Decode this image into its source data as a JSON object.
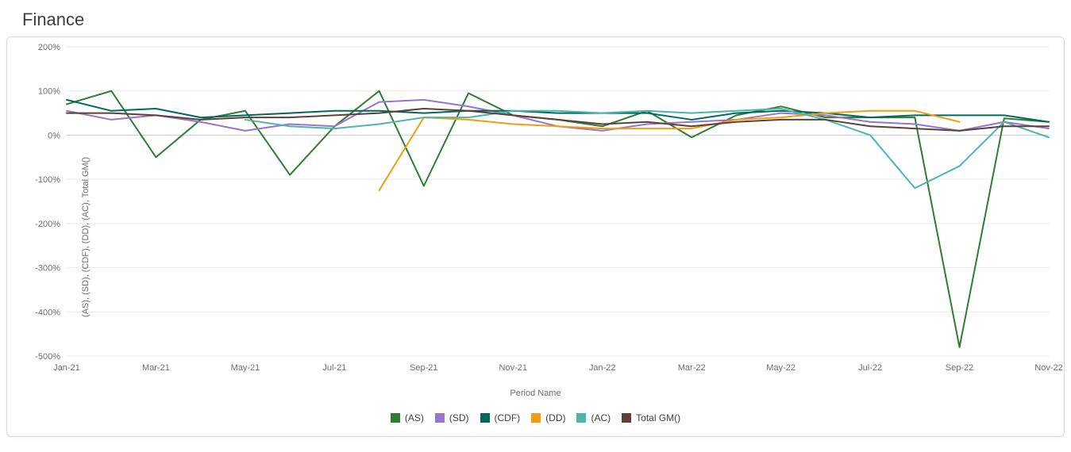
{
  "title": "Finance",
  "chart": {
    "type": "line",
    "xlabel": "Period Name",
    "ylabel": "(AS), (SD), (CDF), (DD), (AC), Total GM()",
    "background_color": "#ffffff",
    "grid_color": "#e8e8e8",
    "zero_line_color": "#cfcfcf",
    "border_color": "#d9d9d9",
    "axis_label_color": "#706e6b",
    "axis_label_fontsize": 11,
    "title_fontsize": 22,
    "ylim": [
      -500,
      200
    ],
    "ytick_step": 100,
    "y_tick_format": "percent",
    "x_categories": [
      "Jan-21",
      "Feb-21",
      "Mar-21",
      "Apr-21",
      "May-21",
      "Jun-21",
      "Jul-21",
      "Aug-21",
      "Sep-21",
      "Oct-21",
      "Nov-21",
      "Dec-21",
      "Jan-22",
      "Feb-22",
      "Mar-22",
      "Apr-22",
      "May-22",
      "Jun-22",
      "Jul-22",
      "Aug-22",
      "Sep-22",
      "Oct-22",
      "Nov-22"
    ],
    "x_tick_labels": [
      "Jan-21",
      "Mar-21",
      "May-21",
      "Jul-21",
      "Sep-21",
      "Nov-21",
      "Jan-22",
      "Mar-22",
      "May-22",
      "Jul-22",
      "Sep-22",
      "Nov-22"
    ],
    "x_tick_indices": [
      0,
      2,
      4,
      6,
      8,
      10,
      12,
      14,
      16,
      18,
      20,
      22
    ],
    "line_width": 2,
    "series": [
      {
        "name": "(AS)",
        "color": "#2e7d32",
        "values": [
          70,
          100,
          -50,
          35,
          55,
          -90,
          20,
          100,
          -115,
          95,
          45,
          35,
          20,
          55,
          -5,
          45,
          65,
          40,
          40,
          40,
          -480,
          38,
          30
        ]
      },
      {
        "name": "(SD)",
        "color": "#9575cd",
        "values": [
          55,
          35,
          45,
          30,
          10,
          25,
          20,
          75,
          80,
          65,
          45,
          20,
          10,
          25,
          30,
          35,
          50,
          45,
          30,
          25,
          10,
          30,
          15
        ]
      },
      {
        "name": "(CDF)",
        "color": "#00695c",
        "values": [
          80,
          55,
          60,
          40,
          45,
          50,
          55,
          55,
          50,
          55,
          55,
          50,
          50,
          50,
          35,
          50,
          55,
          50,
          40,
          45,
          45,
          45,
          30
        ]
      },
      {
        "name": "(DD)",
        "color": "#f39c12",
        "values": [
          null,
          null,
          null,
          null,
          null,
          null,
          null,
          -125,
          40,
          35,
          25,
          20,
          15,
          15,
          15,
          35,
          40,
          50,
          55,
          55,
          30,
          null,
          null
        ]
      },
      {
        "name": "(AC)",
        "color": "#4db6ac",
        "values": [
          null,
          null,
          null,
          null,
          35,
          20,
          15,
          25,
          40,
          40,
          55,
          55,
          50,
          55,
          50,
          55,
          60,
          35,
          0,
          -120,
          -70,
          30,
          -5
        ]
      },
      {
        "name": "Total GM()",
        "color": "#5d4037",
        "values": [
          50,
          50,
          45,
          35,
          40,
          40,
          45,
          50,
          60,
          55,
          45,
          35,
          25,
          30,
          20,
          30,
          35,
          35,
          20,
          15,
          10,
          20,
          20
        ]
      }
    ]
  }
}
